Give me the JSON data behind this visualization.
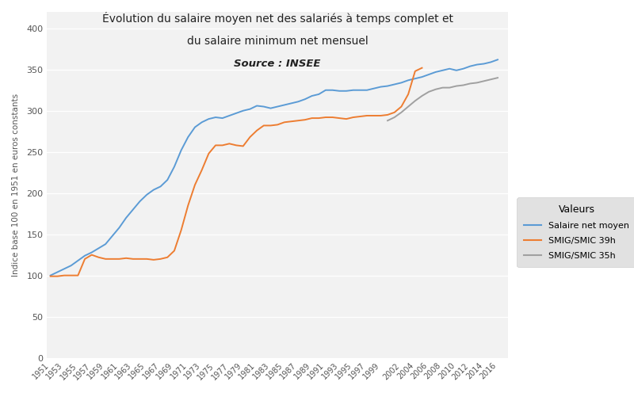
{
  "title_line1": "Évolution du salaire moyen net des salariés à temps complet et",
  "title_line2": "du salaire minimum net mensuel",
  "title_source": "Source : INSEE",
  "ylabel": "Indice base 100 en 1951 en euros constants",
  "background_color": "#ffffff",
  "plot_bg_color": "#f2f2f2",
  "years_salaire": [
    1951,
    1952,
    1953,
    1954,
    1955,
    1956,
    1957,
    1958,
    1959,
    1960,
    1961,
    1962,
    1963,
    1964,
    1965,
    1966,
    1967,
    1968,
    1969,
    1970,
    1971,
    1972,
    1973,
    1974,
    1975,
    1976,
    1977,
    1978,
    1979,
    1980,
    1981,
    1982,
    1983,
    1984,
    1985,
    1986,
    1987,
    1988,
    1989,
    1990,
    1991,
    1992,
    1993,
    1994,
    1995,
    1996,
    1997,
    1998,
    1999,
    2000,
    2001,
    2002,
    2003,
    2004,
    2005,
    2006,
    2007,
    2008,
    2009,
    2010,
    2011,
    2012,
    2013,
    2014,
    2015,
    2016
  ],
  "values_salaire": [
    100,
    104,
    108,
    112,
    118,
    124,
    128,
    133,
    138,
    148,
    158,
    170,
    180,
    190,
    198,
    204,
    208,
    216,
    232,
    252,
    268,
    280,
    286,
    290,
    292,
    291,
    294,
    297,
    300,
    302,
    306,
    305,
    303,
    305,
    307,
    309,
    311,
    314,
    318,
    320,
    325,
    325,
    324,
    324,
    325,
    325,
    325,
    327,
    329,
    330,
    332,
    334,
    337,
    339,
    341,
    344,
    347,
    349,
    351,
    349,
    351,
    354,
    356,
    357,
    359,
    362
  ],
  "years_smig39": [
    1951,
    1952,
    1953,
    1954,
    1955,
    1956,
    1957,
    1958,
    1959,
    1960,
    1961,
    1962,
    1963,
    1964,
    1965,
    1966,
    1967,
    1968,
    1969,
    1970,
    1971,
    1972,
    1973,
    1974,
    1975,
    1976,
    1977,
    1978,
    1979,
    1980,
    1981,
    1982,
    1983,
    1984,
    1985,
    1986,
    1987,
    1988,
    1989,
    1990,
    1991,
    1992,
    1993,
    1994,
    1995,
    1996,
    1997,
    1998,
    1999,
    2000,
    2001,
    2002,
    2003,
    2004,
    2005
  ],
  "values_smig39": [
    99,
    99,
    100,
    100,
    100,
    120,
    125,
    122,
    120,
    120,
    120,
    121,
    120,
    120,
    120,
    119,
    120,
    122,
    130,
    155,
    185,
    210,
    228,
    248,
    258,
    258,
    260,
    258,
    257,
    268,
    276,
    282,
    282,
    283,
    286,
    287,
    288,
    289,
    291,
    291,
    292,
    292,
    291,
    290,
    292,
    293,
    294,
    294,
    294,
    295,
    298,
    305,
    320,
    348,
    352
  ],
  "years_smic35": [
    2000,
    2001,
    2002,
    2003,
    2004,
    2005,
    2006,
    2007,
    2008,
    2009,
    2010,
    2011,
    2012,
    2013,
    2014,
    2015,
    2016
  ],
  "values_smic35": [
    288,
    292,
    298,
    305,
    312,
    318,
    323,
    326,
    328,
    328,
    330,
    331,
    333,
    334,
    336,
    338,
    340
  ],
  "color_salaire": "#5b9bd5",
  "color_smig39": "#ed7d31",
  "color_smic35": "#a0a0a0",
  "ylim": [
    0,
    420
  ],
  "yticks": [
    0,
    50,
    100,
    150,
    200,
    250,
    300,
    350,
    400
  ],
  "xtick_years": [
    1951,
    1953,
    1955,
    1957,
    1959,
    1961,
    1963,
    1965,
    1967,
    1969,
    1971,
    1973,
    1975,
    1977,
    1979,
    1981,
    1983,
    1985,
    1987,
    1989,
    1991,
    1993,
    1995,
    1997,
    1999,
    2002,
    2004,
    2006,
    2008,
    2010,
    2012,
    2014,
    2016
  ],
  "legend_title": "Valeurs",
  "legend_labels": [
    "Salaire net moyen",
    "SMIG/SMIC 39h",
    "SMIG/SMIC 35h"
  ]
}
